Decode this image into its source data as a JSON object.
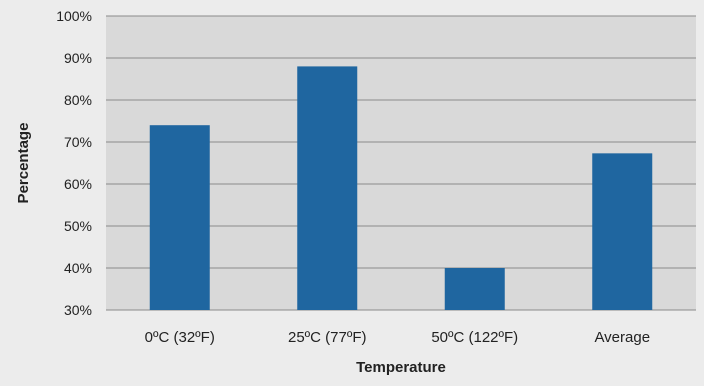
{
  "chart_data": {
    "type": "bar",
    "categories": [
      "0ºC (32ºF)",
      "25ºC (77ºF)",
      "50ºC (122ºF)",
      "Average"
    ],
    "values": [
      74,
      88,
      40,
      67.3
    ],
    "title": "",
    "xlabel": "Temperature",
    "ylabel": "Percentage",
    "ylim": [
      30,
      100
    ],
    "yticks": [
      30,
      40,
      50,
      60,
      70,
      80,
      90,
      100
    ],
    "ytick_labels": [
      "30%",
      "40%",
      "50%",
      "60%",
      "70%",
      "80%",
      "90%",
      "100%"
    ],
    "grid": true,
    "legend": "none"
  },
  "colors": {
    "background": "#ececec",
    "plot_background": "#d9d9d9",
    "bar": "#1f66a0",
    "gridline": "#8a8a8a"
  }
}
